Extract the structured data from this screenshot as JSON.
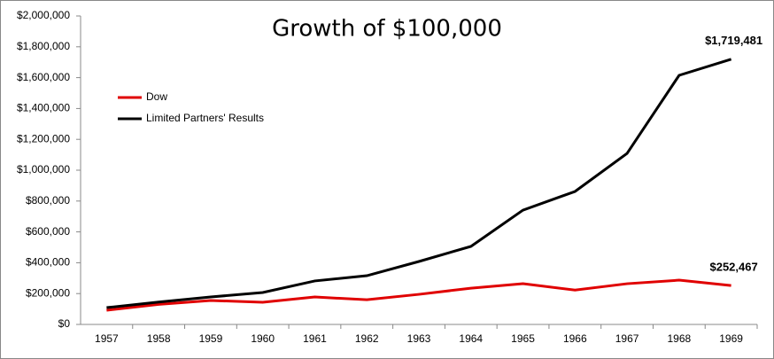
{
  "chart_data": {
    "type": "line",
    "title": "Growth of $100,000",
    "categories": [
      "1957",
      "1958",
      "1959",
      "1960",
      "1961",
      "1962",
      "1963",
      "1964",
      "1965",
      "1966",
      "1967",
      "1968",
      "1969"
    ],
    "series": [
      {
        "name": "Dow",
        "color": "#e00000",
        "values": [
          92000,
          130000,
          155000,
          144000,
          178000,
          160000,
          195000,
          235000,
          264000,
          223000,
          264000,
          287000,
          252467
        ],
        "value_labels": [
          null,
          null,
          null,
          null,
          null,
          null,
          null,
          null,
          null,
          null,
          null,
          null,
          "$252,467"
        ]
      },
      {
        "name": "Limited Partners' Results",
        "color": "#000000",
        "values": [
          109000,
          145000,
          178000,
          207000,
          282000,
          316000,
          408000,
          506000,
          741000,
          862000,
          1109000,
          1615000,
          1719481
        ],
        "value_labels": [
          null,
          null,
          null,
          null,
          null,
          null,
          null,
          null,
          null,
          null,
          null,
          null,
          "$1,719,481"
        ]
      }
    ],
    "ylim": [
      0,
      2000000
    ],
    "yticks": [
      {
        "value": 0,
        "label": "$0"
      },
      {
        "value": 200000,
        "label": "$200,000"
      },
      {
        "value": 400000,
        "label": "$400,000"
      },
      {
        "value": 600000,
        "label": "$600,000"
      },
      {
        "value": 800000,
        "label": "$800,000"
      },
      {
        "value": 1000000,
        "label": "$1,000,000"
      },
      {
        "value": 1200000,
        "label": "$1,200,000"
      },
      {
        "value": 1400000,
        "label": "$1,400,000"
      },
      {
        "value": 1600000,
        "label": "$1,600,000"
      },
      {
        "value": 1800000,
        "label": "$1,800,000"
      },
      {
        "value": 2000000,
        "label": "$2,000,000"
      }
    ],
    "grid": false,
    "legend": "upper-left"
  }
}
